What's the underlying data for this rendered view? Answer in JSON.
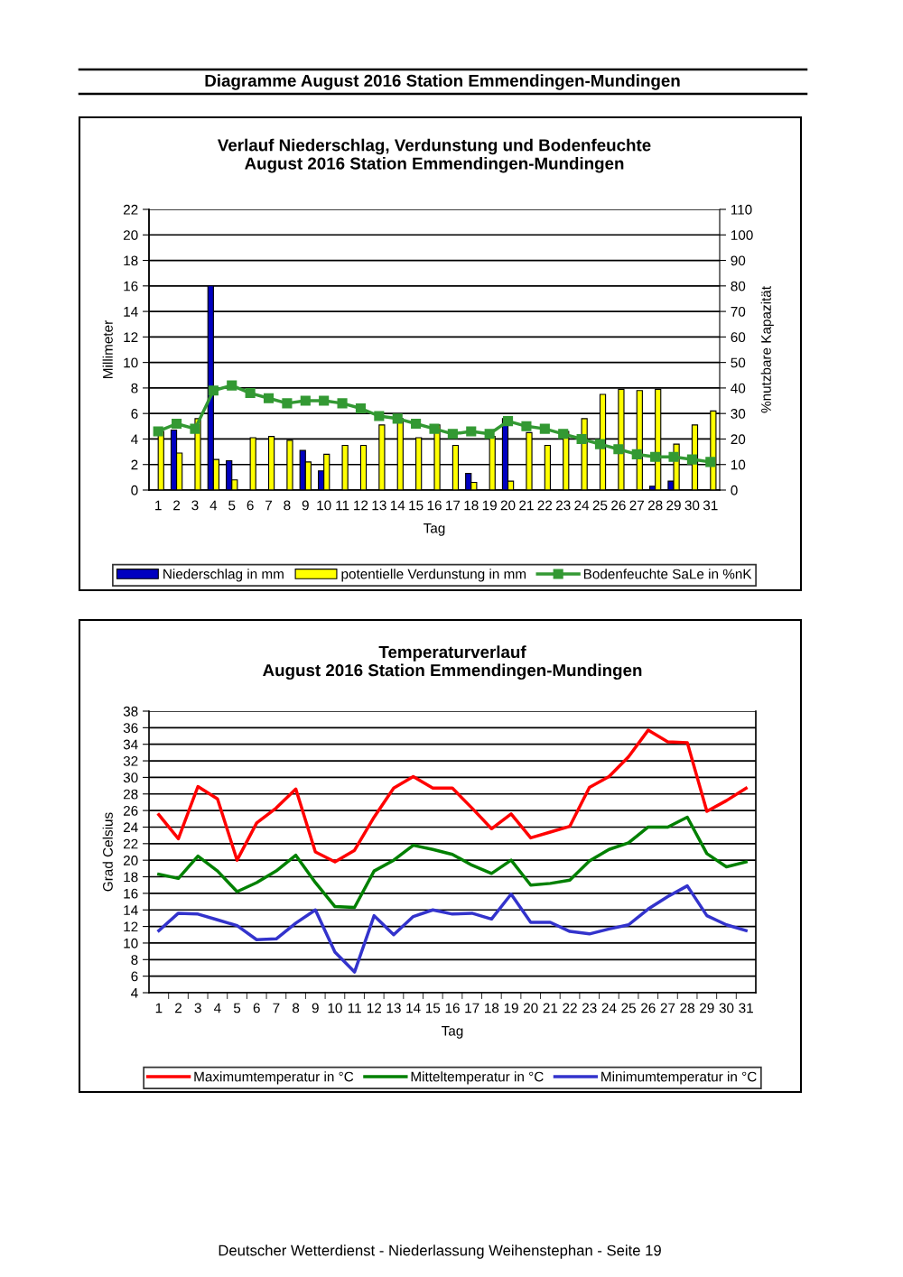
{
  "chart_data": [
    {
      "type": "bar",
      "title": "Verlauf Niederschlag, Verdunstung und Bodenfeuchte\nAugust 2016 Station Emmendingen-Mundingen",
      "xlabel": "Tag",
      "ylabel": "Millimeter",
      "y2label": "%nutzbare Kapazität",
      "annotations": [
        "Diagramme August 2016 Station Emmendingen-Mundingen"
      ],
      "categories": [
        "1",
        "2",
        "3",
        "4",
        "5",
        "6",
        "7",
        "8",
        "9",
        "10",
        "11",
        "12",
        "13",
        "14",
        "15",
        "16",
        "17",
        "18",
        "19",
        "20",
        "21",
        "22",
        "23",
        "24",
        "25",
        "26",
        "27",
        "28",
        "29",
        "30",
        "31"
      ],
      "series": [
        {
          "name": "Niederschlag in mm",
          "color": "#0000c0",
          "values": [
            null,
            4.7,
            null,
            16,
            2.3,
            null,
            null,
            null,
            3.1,
            1.5,
            null,
            null,
            null,
            null,
            null,
            null,
            null,
            1.3,
            null,
            5.6,
            null,
            null,
            null,
            null,
            null,
            null,
            null,
            0.3,
            0.7,
            null,
            null
          ]
        },
        {
          "name": "potentielle Verdunstung in mm",
          "color": "#ffff00",
          "values": [
            4.6,
            2.9,
            5.6,
            2.4,
            0.8,
            4.1,
            4.2,
            3.9,
            2.2,
            2.8,
            3.5,
            3.5,
            5.1,
            5.6,
            4.1,
            5.1,
            3.5,
            0.6,
            4.2,
            0.7,
            4.5,
            3.5,
            4.6,
            5.6,
            7.5,
            7.9,
            7.8,
            7.9,
            3.6,
            5.1,
            6.2
          ]
        },
        {
          "name": "Bodenfeuchte SaLe in %nK",
          "color": "#339933",
          "type": "line",
          "axis": "y2",
          "marker": "square",
          "values": [
            23,
            26,
            24,
            39,
            41,
            38,
            36,
            34,
            35,
            35,
            34,
            32,
            29,
            28,
            26,
            24,
            22,
            23,
            22,
            27,
            25,
            24,
            22,
            20,
            18,
            16,
            14,
            13,
            13,
            12,
            11
          ]
        }
      ],
      "ylim": [
        0,
        22
      ],
      "yticks": [
        0,
        2,
        4,
        6,
        8,
        10,
        12,
        14,
        16,
        18,
        20,
        22
      ],
      "y2lim": [
        0,
        110
      ],
      "y2ticks": [
        0,
        10,
        20,
        30,
        40,
        50,
        60,
        70,
        80,
        90,
        100,
        110
      ],
      "grid": "y",
      "legend": "bottom"
    },
    {
      "type": "line",
      "title": "Temperaturverlauf\nAugust 2016 Station Emmendingen-Mundingen",
      "xlabel": "Tag",
      "ylabel": "Grad Celsius",
      "annotations": [
        "Deutscher Wetterdienst - Niederlassung Weihenstephan - Seite 19"
      ],
      "categories": [
        "1",
        "2",
        "3",
        "4",
        "5",
        "6",
        "7",
        "8",
        "9",
        "10",
        "11",
        "12",
        "13",
        "14",
        "15",
        "16",
        "17",
        "18",
        "19",
        "20",
        "21",
        "22",
        "23",
        "24",
        "25",
        "26",
        "27",
        "28",
        "29",
        "30",
        "31"
      ],
      "series": [
        {
          "name": "Maximumtemperatur in °C",
          "color": "#ff0000",
          "values": [
            25.5,
            22.6,
            28.9,
            27.4,
            20.0,
            24.5,
            26.3,
            28.6,
            21.0,
            19.8,
            21.2,
            25.2,
            28.7,
            30.1,
            28.7,
            28.7,
            26.3,
            23.8,
            25.6,
            22.7,
            23.4,
            24.1,
            28.8,
            30.1,
            32.5,
            35.7,
            34.3,
            34.2,
            25.9,
            27.2,
            28.7
          ]
        },
        {
          "name": "Mitteltemperatur in °C",
          "color": "#008000",
          "values": [
            18.3,
            17.8,
            20.5,
            18.7,
            16.2,
            17.3,
            18.7,
            20.6,
            17.3,
            14.4,
            14.3,
            18.7,
            20.0,
            21.8,
            21.3,
            20.7,
            19.4,
            18.4,
            20.0,
            17.0,
            17.2,
            17.6,
            19.9,
            21.3,
            22.1,
            24.0,
            24.0,
            25.2,
            20.8,
            19.2,
            19.8
          ]
        },
        {
          "name": "Minimumtemperatur in °C",
          "color": "#3333cc",
          "values": [
            11.5,
            13.6,
            13.5,
            12.8,
            12.1,
            10.4,
            10.5,
            12.4,
            14.0,
            8.9,
            6.5,
            13.3,
            11.0,
            13.2,
            14.0,
            13.5,
            13.6,
            12.9,
            15.9,
            12.5,
            12.5,
            11.4,
            11.1,
            11.7,
            12.2,
            14.1,
            15.6,
            16.9,
            13.3,
            12.2,
            11.5
          ]
        }
      ],
      "ylim": [
        4,
        38
      ],
      "yticks": [
        4,
        6,
        8,
        10,
        12,
        14,
        16,
        18,
        20,
        22,
        24,
        26,
        28,
        30,
        32,
        34,
        36,
        38
      ],
      "grid": "y",
      "legend": "bottom"
    }
  ]
}
